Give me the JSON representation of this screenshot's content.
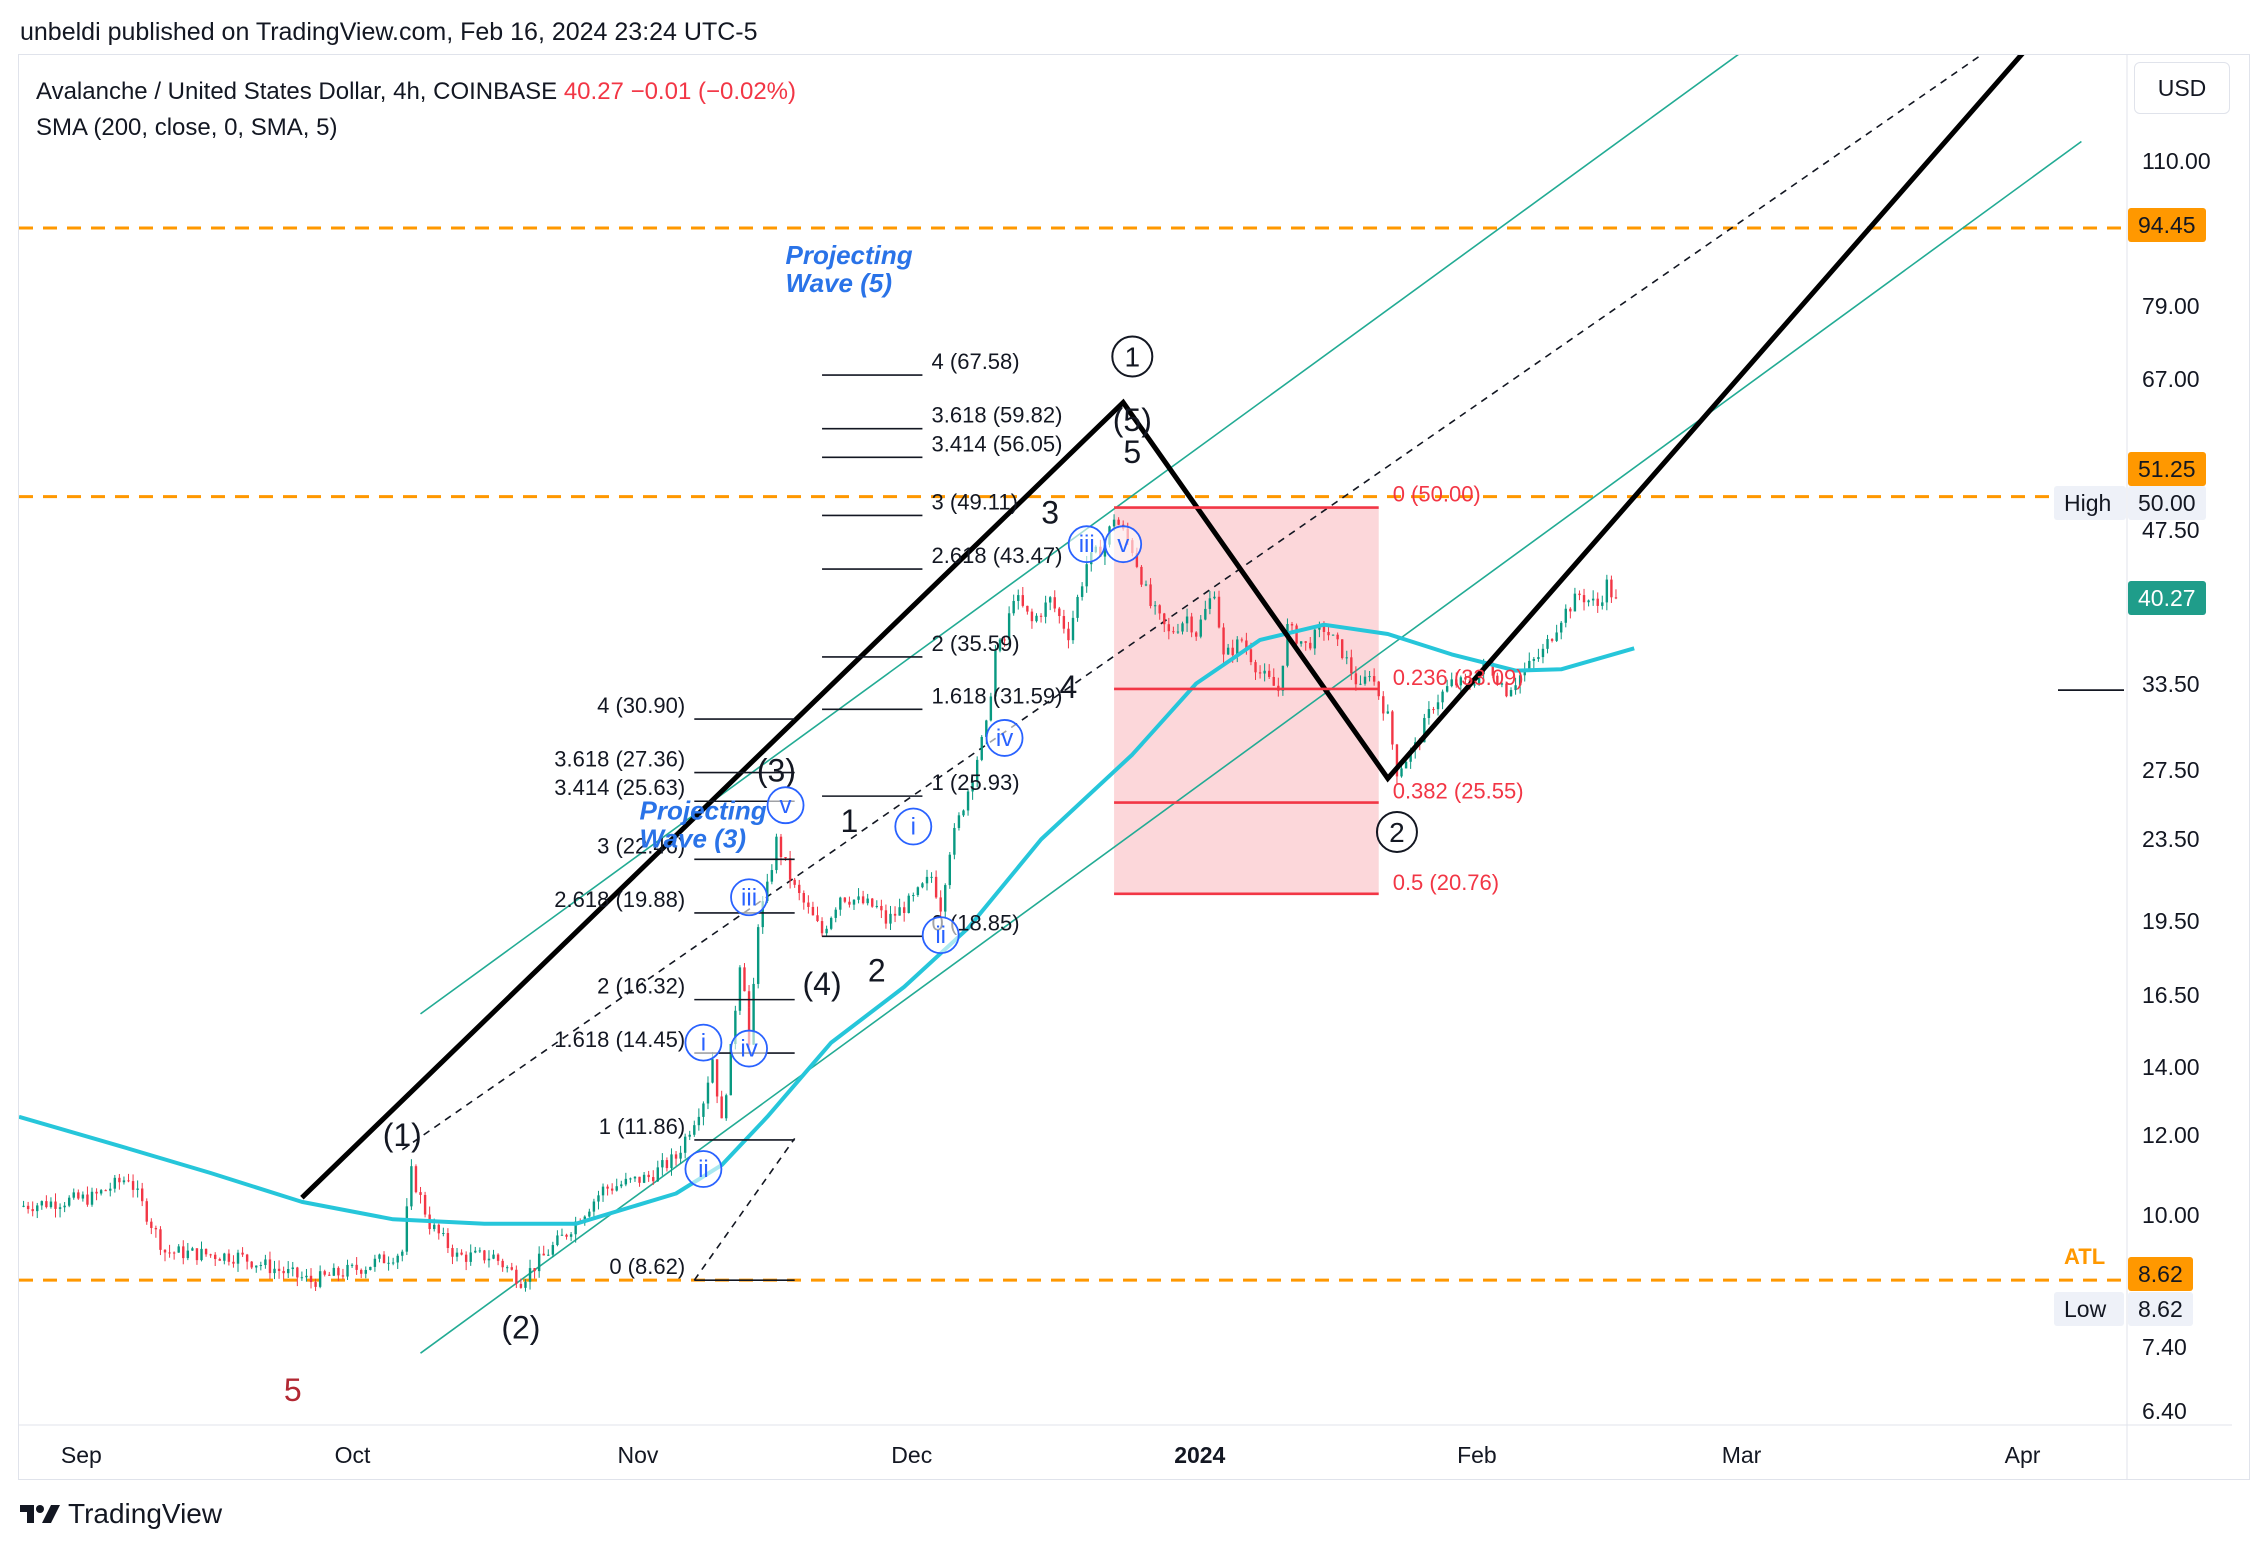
{
  "header": {
    "published": "unbeldi published on TradingView.com, Feb 16, 2024 23:24 UTC-5"
  },
  "legend": {
    "symbol": "Avalanche / United States Dollar, 4h, COINBASE",
    "price": "40.27",
    "change": "−0.01 (−0.02%)",
    "indicator": "SMA (200, close, 0, SMA, 5)"
  },
  "currency": "USD",
  "price_tags": {
    "level_high": "94.45",
    "level_mid": "51.25",
    "high_label": "High",
    "high_value": "50.00",
    "last": "40.27",
    "atl_label": "ATL",
    "atl_value": "8.62",
    "low_label": "Low",
    "low_value": "8.62"
  },
  "brand": "TradingView",
  "colors": {
    "candle_up": "#089981",
    "candle_down": "#f23645",
    "sma": "#26c6da",
    "channel": "#22ab94",
    "level": "#ff9800",
    "fib": "#f23645",
    "wave_label": "#2962ff"
  },
  "chart_data": {
    "type": "candlestick",
    "title": "Avalanche / United States Dollar, 4h, COINBASE",
    "y_scale": "log",
    "ylim": [
      6.2,
      140
    ],
    "xlim": [
      "2023-08-25",
      "2024-04-12"
    ],
    "y_ticks": [
      "110.00",
      "79.00",
      "67.00",
      "47.50",
      "33.50",
      "27.50",
      "23.50",
      "19.50",
      "16.50",
      "14.00",
      "12.00",
      "10.00",
      "7.40",
      "6.40"
    ],
    "x_ticks": [
      {
        "label": "Sep",
        "date": "2023-09-01"
      },
      {
        "label": "Oct",
        "date": "2023-10-01"
      },
      {
        "label": "Nov",
        "date": "2023-11-01"
      },
      {
        "label": "Dec",
        "date": "2023-12-01"
      },
      {
        "label": "2024",
        "date": "2024-01-01",
        "bold": true
      },
      {
        "label": "Feb",
        "date": "2024-02-01"
      },
      {
        "label": "Mar",
        "date": "2024-03-01"
      },
      {
        "label": "Apr",
        "date": "2024-04-01"
      }
    ],
    "price_path": [
      [
        "2023-08-25",
        10.2
      ],
      [
        "2023-09-02",
        10.4
      ],
      [
        "2023-09-06",
        10.9
      ],
      [
        "2023-09-10",
        9.2
      ],
      [
        "2023-09-18",
        9.1
      ],
      [
        "2023-09-26",
        8.6
      ],
      [
        "2023-10-02",
        8.9
      ],
      [
        "2023-10-06",
        9.2
      ],
      [
        "2023-10-07",
        11.0
      ],
      [
        "2023-10-09",
        9.8
      ],
      [
        "2023-10-12",
        9.1
      ],
      [
        "2023-10-16",
        9.1
      ],
      [
        "2023-10-19",
        8.62
      ],
      [
        "2023-10-24",
        9.6
      ],
      [
        "2023-10-28",
        10.6
      ],
      [
        "2023-11-02",
        10.9
      ],
      [
        "2023-11-05",
        11.4
      ],
      [
        "2023-11-08",
        13.0
      ],
      [
        "2023-11-09",
        14.3
      ],
      [
        "2023-11-10",
        12.3
      ],
      [
        "2023-11-11",
        14.5
      ],
      [
        "2023-11-12",
        17.8
      ],
      [
        "2023-11-13",
        16.0
      ],
      [
        "2023-11-13",
        14.5
      ],
      [
        "2023-11-14",
        19.5
      ],
      [
        "2023-11-15",
        21.0
      ],
      [
        "2023-11-16",
        23.4
      ],
      [
        "2023-11-18",
        21.0
      ],
      [
        "2023-11-21",
        19.0
      ],
      [
        "2023-11-23",
        20.7
      ],
      [
        "2023-11-27",
        20.1
      ],
      [
        "2023-11-28",
        19.5
      ],
      [
        "2023-12-01",
        20.5
      ],
      [
        "2023-12-03",
        21.6
      ],
      [
        "2023-12-04",
        20.2
      ],
      [
        "2023-12-05",
        23.0
      ],
      [
        "2023-12-07",
        26.3
      ],
      [
        "2023-12-08",
        28.3
      ],
      [
        "2023-12-09",
        30.3
      ],
      [
        "2023-12-10",
        36.0
      ],
      [
        "2023-12-11",
        37.0
      ],
      [
        "2023-12-12",
        41.0
      ],
      [
        "2023-12-14",
        38.5
      ],
      [
        "2023-12-16",
        40.5
      ],
      [
        "2023-12-18",
        37.5
      ],
      [
        "2023-12-20",
        44.0
      ],
      [
        "2023-12-22",
        46.0
      ],
      [
        "2023-12-23",
        49.0
      ],
      [
        "2023-12-25",
        45.5
      ],
      [
        "2023-12-27",
        40.0
      ],
      [
        "2023-12-29",
        37.5
      ],
      [
        "2023-12-31",
        39.0
      ],
      [
        "2024-01-01",
        37.6
      ],
      [
        "2024-01-03",
        41.5
      ],
      [
        "2024-01-04",
        35.5
      ],
      [
        "2024-01-06",
        37.0
      ],
      [
        "2024-01-08",
        34.3
      ],
      [
        "2024-01-10",
        33.0
      ],
      [
        "2024-01-11",
        38.0
      ],
      [
        "2024-01-13",
        36.5
      ],
      [
        "2024-01-15",
        38.0
      ],
      [
        "2024-01-17",
        36.0
      ],
      [
        "2024-01-19",
        33.0
      ],
      [
        "2024-01-20",
        34.5
      ],
      [
        "2024-01-22",
        31.0
      ],
      [
        "2024-01-23",
        27.5
      ],
      [
        "2024-01-25",
        29.0
      ],
      [
        "2024-01-27",
        32.0
      ],
      [
        "2024-01-29",
        33.5
      ],
      [
        "2024-01-31",
        33.5
      ],
      [
        "2024-02-02",
        35.0
      ],
      [
        "2024-02-04",
        33.0
      ],
      [
        "2024-02-06",
        34.5
      ],
      [
        "2024-02-08",
        36.0
      ],
      [
        "2024-02-10",
        39.0
      ],
      [
        "2024-02-12",
        41.0
      ],
      [
        "2024-02-14",
        40.0
      ],
      [
        "2024-02-15",
        42.0
      ],
      [
        "2024-02-16",
        40.27
      ]
    ],
    "series": [
      {
        "name": "SMA (200, close, 0, SMA, 5)",
        "points": [
          [
            "2023-08-25",
            12.5
          ],
          [
            "2023-09-05",
            11.7
          ],
          [
            "2023-09-15",
            11.0
          ],
          [
            "2023-09-25",
            10.3
          ],
          [
            "2023-10-05",
            9.9
          ],
          [
            "2023-10-15",
            9.8
          ],
          [
            "2023-10-25",
            9.8
          ],
          [
            "2023-11-05",
            10.5
          ],
          [
            "2023-11-10",
            11.2
          ],
          [
            "2023-11-15",
            12.5
          ],
          [
            "2023-11-22",
            14.8
          ],
          [
            "2023-11-30",
            16.8
          ],
          [
            "2023-12-07",
            19.2
          ],
          [
            "2023-12-15",
            23.5
          ],
          [
            "2023-12-25",
            28.5
          ],
          [
            "2024-01-01",
            33.5
          ],
          [
            "2024-01-08",
            37.0
          ],
          [
            "2024-01-15",
            38.3
          ],
          [
            "2024-01-22",
            37.5
          ],
          [
            "2024-01-29",
            35.8
          ],
          [
            "2024-02-05",
            34.5
          ],
          [
            "2024-02-10",
            34.6
          ],
          [
            "2024-02-18",
            36.3
          ]
        ]
      }
    ],
    "horizontal_levels": [
      94.45,
      51.25,
      8.62
    ],
    "channel_lines": [
      [
        [
          "2023-10-08",
          15.8
        ],
        [
          "2024-03-04",
          148
        ]
      ],
      [
        [
          "2023-10-08",
          7.3
        ],
        [
          "2024-04-07",
          115
        ]
      ]
    ],
    "dashed_lines": [
      [
        [
          "2023-10-06",
          11.6
        ],
        [
          "2024-03-28",
          142
        ]
      ],
      [
        [
          "2023-11-07",
          8.62
        ],
        [
          "2023-11-18",
          11.9
        ]
      ]
    ],
    "wave_projection_path": [
      [
        "2023-09-25",
        10.4
      ],
      [
        "2023-12-24",
        63.5
      ],
      [
        "2024-01-22",
        27.0
      ],
      [
        "2024-04-01",
        142
      ]
    ],
    "fib_retracement": {
      "x0": "2023-12-23",
      "x1": "2024-01-21",
      "levels": [
        {
          "ratio": "0",
          "price": 50.0,
          "label": "0 (50.00)"
        },
        {
          "ratio": "0.236",
          "price": 33.09,
          "label": "0.236 (33.09)"
        },
        {
          "ratio": "0.382",
          "price": 25.55,
          "label": "0.382 (25.55)"
        },
        {
          "ratio": "0.5",
          "price": 20.76,
          "label": "0.5 (20.76)"
        }
      ]
    },
    "fib_extension_wave3": {
      "x0": "2023-11-07",
      "x1": "2023-11-18",
      "label_date": "2023-11-06",
      "levels": [
        {
          "price": 8.62,
          "label": "0 (8.62)"
        },
        {
          "price": 11.86,
          "label": "1 (11.86)"
        },
        {
          "price": 14.45,
          "label": "1.618 (14.45)"
        },
        {
          "price": 16.32,
          "label": "2 (16.32)"
        },
        {
          "price": 19.88,
          "label": "2.618 (19.88)"
        },
        {
          "price": 22.46,
          "label": "3 (22.46)"
        },
        {
          "price": 25.63,
          "label": "3.414 (25.63)"
        },
        {
          "price": 27.36,
          "label": "3.618 (27.36)"
        },
        {
          "price": 30.9,
          "label": "4 (30.90)"
        }
      ]
    },
    "fib_extension_wave5": {
      "x0": "2023-11-21",
      "x1": "2023-12-02",
      "label_date": "2023-12-03",
      "levels": [
        {
          "price": 18.85,
          "label": "0 (18.85)"
        },
        {
          "price": 25.93,
          "label": "1 (25.93)"
        },
        {
          "price": 31.59,
          "label": "1.618 (31.59)"
        },
        {
          "price": 35.59,
          "label": "2 (35.59)"
        },
        {
          "price": 43.47,
          "label": "2.618 (43.47)"
        },
        {
          "price": 49.11,
          "label": "3 (49.11)"
        },
        {
          "price": 56.05,
          "label": "3.414 (56.05)"
        },
        {
          "price": 59.82,
          "label": "3.618 (59.82)"
        },
        {
          "price": 67.58,
          "label": "4 (67.58)"
        }
      ]
    },
    "projection_labels": [
      {
        "lines": [
          "Projecting",
          "Wave (3)"
        ],
        "date": "2023-11-01",
        "price": 24.6
      },
      {
        "lines": [
          "Projecting",
          "Wave (5)"
        ],
        "date": "2023-11-17",
        "price": 87
      }
    ],
    "wave_labels": [
      {
        "text": "(1)",
        "date": "2023-10-06",
        "price": 11.7,
        "style": "plain"
      },
      {
        "text": "(2)",
        "date": "2023-10-19",
        "price": 7.55,
        "style": "plain"
      },
      {
        "text": "(3)",
        "date": "2023-11-16",
        "price": 26.8,
        "style": "plain"
      },
      {
        "text": "(4)",
        "date": "2023-11-21",
        "price": 16.5,
        "style": "plain"
      },
      {
        "text": "(5)",
        "date": "2023-12-25",
        "price": 59.5,
        "style": "plain"
      },
      {
        "text": "5",
        "date": "2023-09-24",
        "price": 6.55,
        "style": "red"
      },
      {
        "text": "1",
        "date": "2023-11-24",
        "price": 23.9,
        "style": "plain"
      },
      {
        "text": "2",
        "date": "2023-11-27",
        "price": 17.0,
        "style": "plain"
      },
      {
        "text": "3",
        "date": "2023-12-16",
        "price": 48.2,
        "style": "plain"
      },
      {
        "text": "4",
        "date": "2023-12-18",
        "price": 32.4,
        "style": "plain"
      },
      {
        "text": "5",
        "date": "2023-12-25",
        "price": 55.3,
        "style": "plain"
      },
      {
        "text": "1",
        "date": "2023-12-25",
        "price": 70.5,
        "style": "circle"
      },
      {
        "text": "2",
        "date": "2024-01-23",
        "price": 23.9,
        "style": "circle"
      },
      {
        "text": "i",
        "date": "2023-11-08",
        "price": 14.8,
        "style": "blue"
      },
      {
        "text": "ii",
        "date": "2023-11-08",
        "price": 11.1,
        "style": "blue"
      },
      {
        "text": "iii",
        "date": "2023-11-13",
        "price": 20.6,
        "style": "blue"
      },
      {
        "text": "iv",
        "date": "2023-11-13",
        "price": 14.6,
        "style": "blue"
      },
      {
        "text": "v",
        "date": "2023-11-17",
        "price": 25.4,
        "style": "blue"
      },
      {
        "text": "i",
        "date": "2023-12-01",
        "price": 24.2,
        "style": "blue"
      },
      {
        "text": "ii",
        "date": "2023-12-04",
        "price": 18.9,
        "style": "blue"
      },
      {
        "text": "iii",
        "date": "2023-12-20",
        "price": 46.0,
        "style": "blue"
      },
      {
        "text": "iv",
        "date": "2023-12-11",
        "price": 29.6,
        "style": "blue"
      },
      {
        "text": "v",
        "date": "2023-12-24",
        "price": 46.0,
        "style": "blue"
      }
    ]
  }
}
